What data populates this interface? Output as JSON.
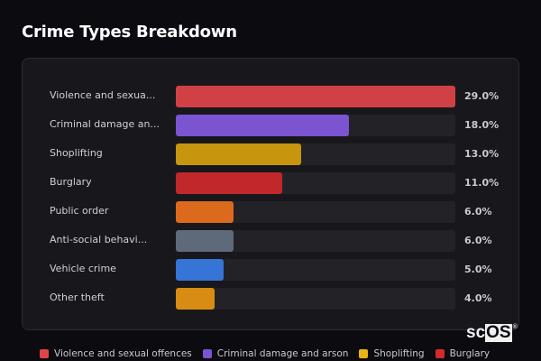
{
  "header": {
    "title": "Crime Types Breakdown"
  },
  "chart_data": {
    "type": "bar",
    "orientation": "horizontal",
    "title": "Crime Types Breakdown",
    "categories": [
      "Violence and sexual offences",
      "Criminal damage and arson",
      "Shoplifting",
      "Burglary",
      "Public order",
      "Anti-social behaviour",
      "Vehicle crime",
      "Other theft"
    ],
    "display_labels": [
      "Violence and sexua...",
      "Criminal damage an...",
      "Shoplifting",
      "Burglary",
      "Public order",
      "Anti-social behavi...",
      "Vehicle crime",
      "Other theft"
    ],
    "values": [
      29.0,
      18.0,
      13.0,
      11.0,
      6.0,
      6.0,
      5.0,
      4.0
    ],
    "value_labels": [
      "29.0%",
      "18.0%",
      "13.0%",
      "11.0%",
      "6.0%",
      "6.0%",
      "5.0%",
      "4.0%"
    ],
    "colors": [
      "#d04044",
      "#7b54d2",
      "#c8960e",
      "#c0282c",
      "#dc6a1c",
      "#5e6a7a",
      "#3674d6",
      "#d88c14"
    ],
    "unit": "%",
    "xlim": [
      0,
      29
    ],
    "grid": false,
    "legend": {
      "position": "bottom",
      "entries": [
        {
          "label": "Violence and sexual offences",
          "color": "#e04448"
        },
        {
          "label": "Criminal damage and arson",
          "color": "#7b54d2"
        },
        {
          "label": "Shoplifting",
          "color": "#e8b416"
        },
        {
          "label": "Burglary",
          "color": "#d42a2e"
        }
      ]
    }
  },
  "watermark": {
    "text_a": "sc",
    "text_b": "OS",
    "reg": "®"
  }
}
